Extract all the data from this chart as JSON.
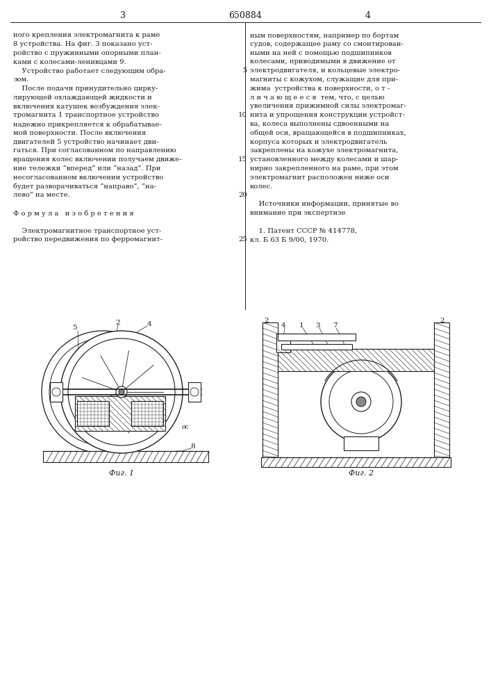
{
  "page_number_left": "3",
  "patent_number": "650884",
  "page_number_right": "4",
  "background_color": "#ffffff",
  "text_color": "#1a1a1a",
  "line_color": "#1a1a1a",
  "fig1_caption": "Фиг. 1",
  "fig2_caption": "Фиг. 2",
  "left_col_lines": [
    "ного крепления электромагнита к раме",
    "8 устройства. На фиг. 3 показано уст-",
    "ройство с пружинными опорными план-",
    "ками с колесами-ленивцами 9.",
    "    Устройство работает следующим обра-",
    "зом.",
    "    После подачи принудительно цирку-",
    "лирующей охлаждающей жидкости и",
    "включения катушек возбуждения элек-",
    "тромагнита 1 транспортное устройство",
    "надежно прикрепляется к обрабатывае-",
    "мой поверхности. После включения",
    "двигателей 5 устройство начинает дви-",
    "гаться. При согласованном по направлению",
    "вращения колес включении получаем движе-",
    "ние тележки “вперед” или “назад”. При",
    "несогласованном включении устройство",
    "будет разворачиваться “направо”, “на-",
    "лево” на месте.",
    "",
    "Ф о р м у л а   и з о б р е т е н и я",
    "",
    "    Электромагнитное транспортное уст-",
    "ройство передвижения по ферромагнит-"
  ],
  "right_col_lines": [
    "ным поверхностям, например по бортам",
    "судов, содержащее раму со смонтирован-",
    "ными на ней с помощью подшипников",
    "колесами, приводимыми в движение от",
    "электродвигателя, и кольцевые электро-",
    "магниты с кожухом, служащие для при-",
    "жима  устройства к поверхности, о т -",
    "л и ч а ю щ е е с я  тем, что, с целью",
    "увеличения прижимной силы электромаг-",
    "нита и упрощения конструкции устройст-",
    "ва, колеса выполнены сдвоенными на",
    "общей оси, вращающейся в подшипниках,",
    "корпуса которых и электродвигатель",
    "закреплены на кожухе электромагнита,",
    "установленного между колесами и шар-",
    "нирно закрепленного на раме, при этом",
    "электромагнит расположен ниже оси",
    "колес.",
    "",
    "    Источники информации, принятые во",
    "внимание при экспертизе",
    "",
    "    1. Патент СССР № 414778,",
    "кл. Б 63 Б 9/00, 1970."
  ],
  "line_numbers_right": [
    "5",
    "10",
    "15",
    "20",
    "25"
  ]
}
